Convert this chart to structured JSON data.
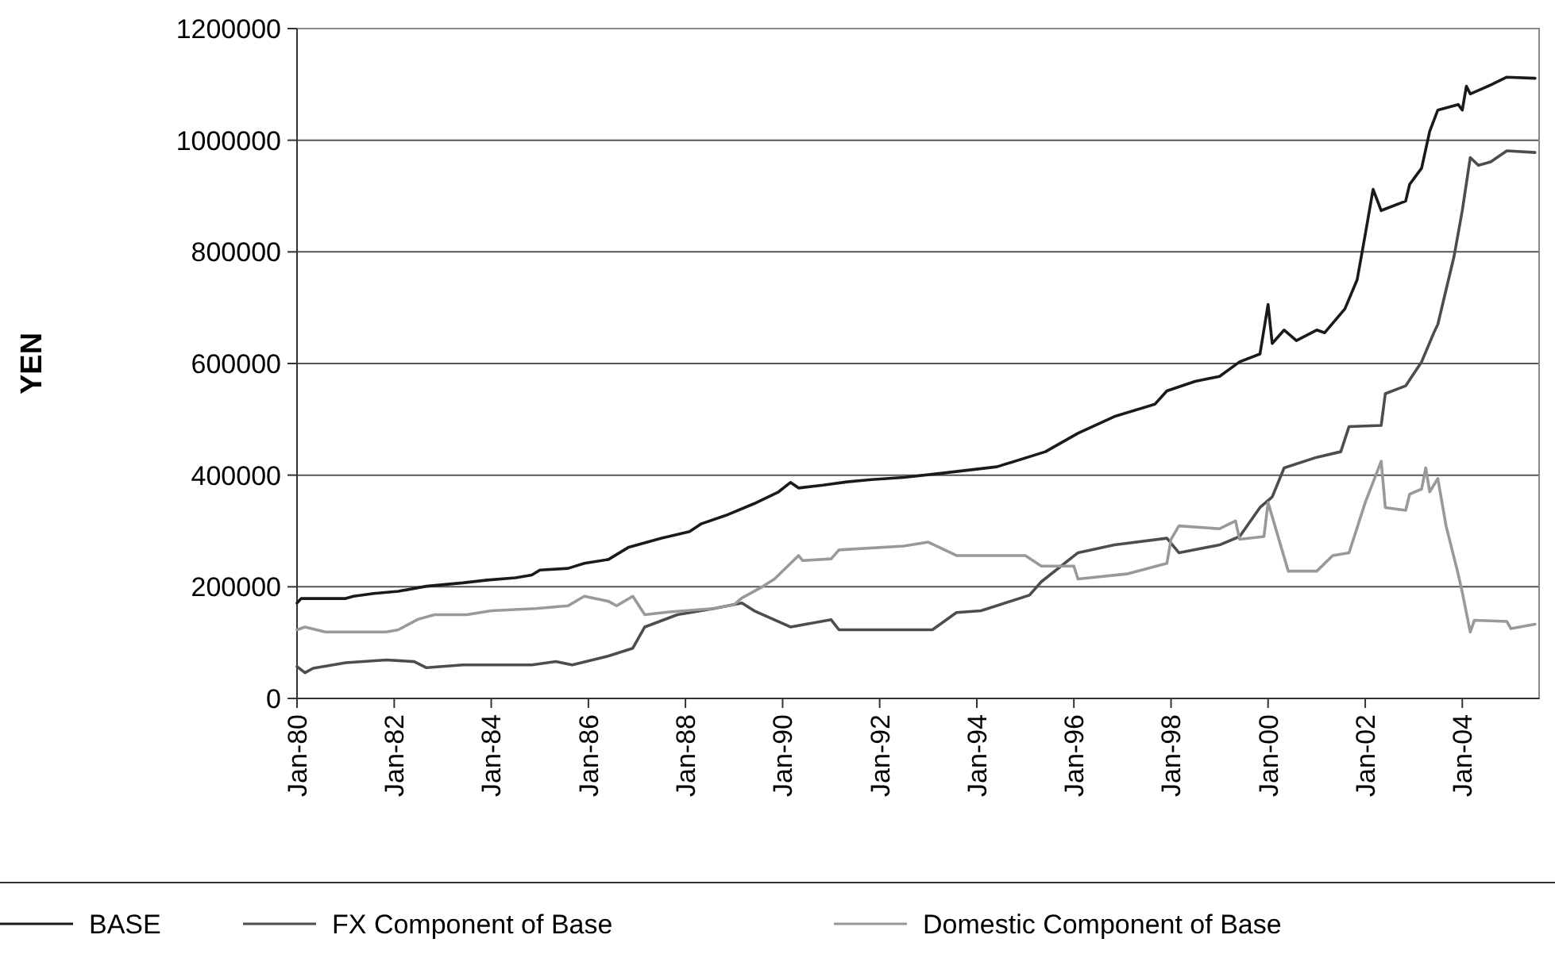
{
  "chart_data": {
    "type": "line",
    "ylabel": "YEN",
    "xlim": [
      "1980-01",
      "2005-08"
    ],
    "ylim": [
      0,
      1200000
    ],
    "xticks": [
      {
        "value": "1980-01",
        "label": "Jan-80"
      },
      {
        "value": "1982-01",
        "label": "Jan-82"
      },
      {
        "value": "1984-01",
        "label": "Jan-84"
      },
      {
        "value": "1986-01",
        "label": "Jan-86"
      },
      {
        "value": "1988-01",
        "label": "Jan-88"
      },
      {
        "value": "1990-01",
        "label": "Jan-90"
      },
      {
        "value": "1992-01",
        "label": "Jan-92"
      },
      {
        "value": "1994-01",
        "label": "Jan-94"
      },
      {
        "value": "1996-01",
        "label": "Jan-96"
      },
      {
        "value": "1998-01",
        "label": "Jan-98"
      },
      {
        "value": "2000-01",
        "label": "Jan-00"
      },
      {
        "value": "2002-01",
        "label": "Jan-02"
      },
      {
        "value": "2004-01",
        "label": "Jan-04"
      }
    ],
    "yticks": [
      0,
      200000,
      400000,
      600000,
      800000,
      1000000,
      1200000
    ],
    "grid": "y",
    "legend": "bottom",
    "marker": "none",
    "line_style": "solid",
    "series": [
      {
        "name": "BASE",
        "color": "#1a1a1a",
        "x": [
          "1980-01",
          "1980-02",
          "1981-01",
          "1981-03",
          "1981-08",
          "1982-02",
          "1982-09",
          "1983-06",
          "1983-12",
          "1984-07",
          "1984-11",
          "1985-01",
          "1985-08",
          "1985-12",
          "1986-06",
          "1986-11",
          "1987-07",
          "1988-02",
          "1988-05",
          "1988-11",
          "1989-06",
          "1989-12",
          "1990-03",
          "1990-05",
          "1990-11",
          "1991-05",
          "1991-11",
          "1992-07",
          "1993-05",
          "1994-06",
          "1995-06",
          "1996-02",
          "1996-11",
          "1997-09",
          "1997-12",
          "1998-07",
          "1999-01",
          "1999-06",
          "1999-11",
          "2000-01",
          "2000-02",
          "2000-05",
          "2000-08",
          "2001-01",
          "2001-03",
          "2001-08",
          "2001-11",
          "2002-01",
          "2002-03",
          "2002-05",
          "2002-11",
          "2002-12",
          "2003-03",
          "2003-05",
          "2003-07",
          "2003-12",
          "2004-01",
          "2004-02",
          "2004-03",
          "2004-08",
          "2004-12",
          "2005-07"
        ],
        "values": [
          171000,
          179000,
          179000,
          183000,
          188000,
          192000,
          201000,
          207000,
          212000,
          216000,
          221000,
          230000,
          233000,
          242000,
          249000,
          271000,
          287000,
          299000,
          313000,
          328000,
          349000,
          370000,
          387000,
          377000,
          382000,
          388000,
          392000,
          396000,
          404000,
          415000,
          442000,
          475000,
          505000,
          527000,
          551000,
          568000,
          577000,
          603000,
          617000,
          706000,
          636000,
          660000,
          641000,
          660000,
          655000,
          698000,
          750000,
          831000,
          912000,
          874000,
          891000,
          921000,
          950000,
          1016000,
          1054000,
          1064000,
          1054000,
          1097000,
          1083000,
          1099000,
          1113000,
          1111000
        ]
      },
      {
        "name": "FX Component of Base",
        "color": "#4d4d4d",
        "x": [
          "1980-01",
          "1980-03",
          "1980-05",
          "1981-01",
          "1981-11",
          "1982-06",
          "1982-09",
          "1983-06",
          "1984-11",
          "1985-05",
          "1985-09",
          "1986-06",
          "1986-12",
          "1987-03",
          "1987-11",
          "1988-08",
          "1989-03",
          "1989-06",
          "1990-03",
          "1991-01",
          "1991-03",
          "1992-07",
          "1993-02",
          "1993-08",
          "1994-02",
          "1995-02",
          "1995-05",
          "1996-02",
          "1996-11",
          "1997-12",
          "1998-03",
          "1999-01",
          "1999-06",
          "1999-11",
          "2000-02",
          "2000-05",
          "2001-01",
          "2001-07",
          "2001-09",
          "2002-05",
          "2002-06",
          "2002-11",
          "2003-03",
          "2003-06",
          "2003-07",
          "2003-11",
          "2004-01",
          "2004-03",
          "2004-05",
          "2004-08",
          "2004-12",
          "2005-07"
        ],
        "values": [
          57000,
          46000,
          54000,
          64000,
          69000,
          66000,
          55000,
          60000,
          60000,
          66000,
          60000,
          76000,
          90000,
          128000,
          150000,
          161000,
          171000,
          157000,
          128000,
          141000,
          123000,
          123000,
          123000,
          154000,
          157000,
          185000,
          209000,
          261000,
          275000,
          287000,
          261000,
          275000,
          290000,
          342000,
          361000,
          413000,
          432000,
          442000,
          487000,
          489000,
          546000,
          560000,
          603000,
          655000,
          670000,
          793000,
          874000,
          969000,
          955000,
          961000,
          981000,
          978000
        ]
      },
      {
        "name": "Domestic Component of Base",
        "color": "#999999",
        "x": [
          "1980-01",
          "1980-03",
          "1980-08",
          "1981-11",
          "1982-02",
          "1982-07",
          "1982-11",
          "1983-07",
          "1984-01",
          "1984-12",
          "1985-08",
          "1985-12",
          "1986-06",
          "1986-08",
          "1986-12",
          "1987-03",
          "1987-09",
          "1988-08",
          "1989-01",
          "1989-03",
          "1989-08",
          "1989-11",
          "1990-05",
          "1990-06",
          "1991-01",
          "1991-03",
          "1992-07",
          "1993-01",
          "1993-08",
          "1995-01",
          "1995-05",
          "1996-01",
          "1996-02",
          "1997-02",
          "1997-12",
          "1998-01",
          "1998-03",
          "1999-01",
          "1999-05",
          "1999-06",
          "1999-12",
          "2000-01",
          "2000-06",
          "2001-01",
          "2001-05",
          "2001-09",
          "2002-01",
          "2002-05",
          "2002-06",
          "2002-11",
          "2002-12",
          "2003-03",
          "2003-04",
          "2003-05",
          "2003-07",
          "2003-09",
          "2003-12",
          "2004-01",
          "2004-03",
          "2004-04",
          "2004-12",
          "2005-01",
          "2005-07"
        ],
        "values": [
          123000,
          128000,
          119000,
          119000,
          123000,
          142000,
          150000,
          150000,
          157000,
          161000,
          166000,
          183000,
          174000,
          166000,
          183000,
          150000,
          155000,
          161000,
          168000,
          180000,
          200000,
          214000,
          256000,
          247000,
          250000,
          266000,
          273000,
          280000,
          256000,
          256000,
          237000,
          237000,
          214000,
          223000,
          242000,
          285000,
          309000,
          304000,
          318000,
          285000,
          290000,
          351000,
          228000,
          228000,
          256000,
          261000,
          351000,
          425000,
          342000,
          337000,
          366000,
          375000,
          413000,
          370000,
          394000,
          309000,
          223000,
          190000,
          119000,
          140000,
          138000,
          125000,
          133000
        ]
      }
    ]
  }
}
